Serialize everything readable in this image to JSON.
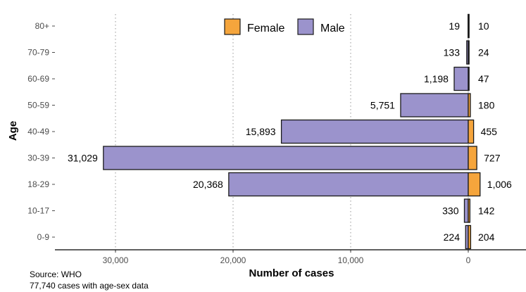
{
  "chart_data": {
    "type": "bar",
    "orientation": "horizontal-population-pyramid",
    "categories": [
      "0-9",
      "10-17",
      "18-29",
      "30-39",
      "40-49",
      "50-59",
      "60-69",
      "70-79",
      "80+"
    ],
    "series": [
      {
        "name": "Female",
        "color": "#f5a53c",
        "values": [
          204,
          142,
          1006,
          727,
          455,
          180,
          47,
          24,
          10
        ],
        "labels": [
          "204",
          "142",
          "1,006",
          "727",
          "455",
          "180",
          "47",
          "24",
          "10"
        ]
      },
      {
        "name": "Male",
        "color": "#9b93cc",
        "values": [
          224,
          330,
          20368,
          31029,
          15893,
          5751,
          1198,
          133,
          19
        ],
        "labels": [
          "224",
          "330",
          "20,368",
          "31,029",
          "15,893",
          "5,751",
          "1,198",
          "133",
          "19"
        ]
      }
    ],
    "xlabel": "Number of cases",
    "ylabel": "Age",
    "x_ticks": [
      30000,
      20000,
      10000,
      0
    ],
    "x_tick_labels": [
      "30,000",
      "20,000",
      "10,000",
      "0"
    ],
    "xlim": [
      -35000,
      5000
    ],
    "grid": "vertical dotted",
    "legend_position": "top-center"
  },
  "caption": {
    "source": "Source: WHO",
    "note": "77,740 cases with age-sex data"
  }
}
